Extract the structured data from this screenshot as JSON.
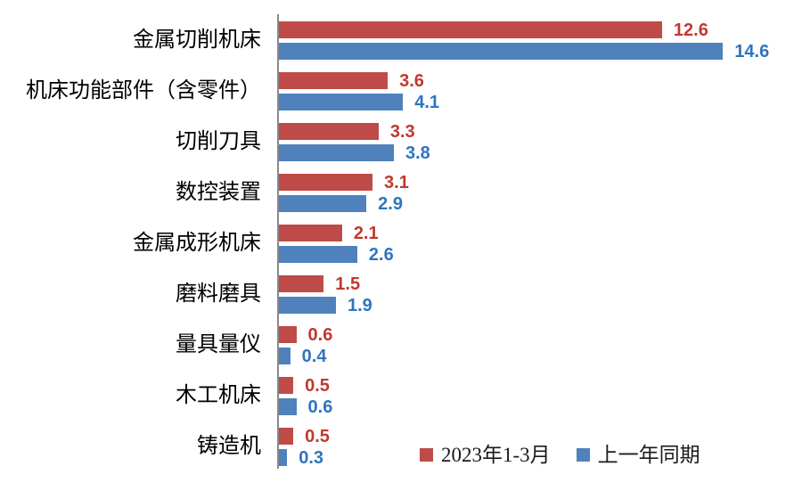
{
  "chart_data": {
    "type": "bar",
    "orientation": "horizontal",
    "title": "",
    "xlabel": "",
    "ylabel": "",
    "categories": [
      "金属切削机床",
      "机床功能部件（含零件）",
      "切削刀具",
      "数控装置",
      "金属成形机床",
      "磨料磨具",
      "量具量仪",
      "木工机床",
      "铸造机"
    ],
    "series": [
      {
        "name": "2023年1-3月",
        "values": [
          12.6,
          3.6,
          3.3,
          3.1,
          2.1,
          1.5,
          0.6,
          0.5,
          0.5
        ],
        "bar_color": "#be4b48",
        "label_color": "#c0392f"
      },
      {
        "name": "上一年同期",
        "values": [
          14.6,
          4.1,
          3.8,
          2.9,
          2.6,
          1.9,
          0.4,
          0.6,
          0.3
        ],
        "bar_color": "#4f81bd",
        "label_color": "#2e74c0"
      }
    ],
    "data_labels": true,
    "grid": false,
    "legend_position": "bottom",
    "value_axis_range": [
      0,
      17
    ],
    "axis_line_color": "#8a8a8a",
    "background_color": "#ffffff"
  }
}
